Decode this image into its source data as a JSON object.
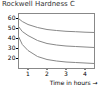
{
  "chart_data": {
    "type": "line",
    "title": "Rockwell Hardness C",
    "xlabel": "Time in hours",
    "x": [
      0.5,
      0.7,
      1.0,
      1.5,
      2.0,
      2.5,
      3.0,
      3.5,
      4.0,
      4.5
    ],
    "series": [
      {
        "color": "#888888",
        "values": [
          60,
          57,
          54,
          51,
          49,
          48,
          47.2,
          46.8,
          46.3,
          46
        ]
      },
      {
        "color": "#888888",
        "values": [
          52,
          47,
          43,
          38,
          35,
          33.5,
          32.5,
          32,
          31.5,
          31
        ]
      },
      {
        "color": "#888888",
        "values": [
          42,
          34,
          28,
          22,
          19,
          17.5,
          16.5,
          16,
          15.5,
          15
        ]
      }
    ],
    "xlim": [
      0.5,
      4.5
    ],
    "ylim": [
      10,
      65
    ],
    "xticks": [
      1,
      2,
      3,
      4
    ],
    "yticks": [
      20,
      30,
      40,
      50,
      60
    ]
  }
}
